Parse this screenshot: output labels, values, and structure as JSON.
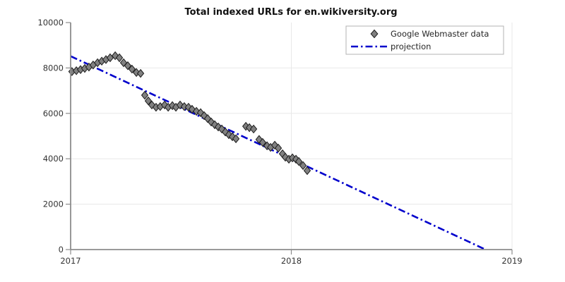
{
  "figure": {
    "background": "#ffffff"
  },
  "chart_data": {
    "type": "scatter",
    "title": "Total indexed URLs for en.wikiversity.org",
    "xlabel": "",
    "ylabel": "",
    "xlim": [
      2017,
      2019
    ],
    "ylim": [
      0,
      10000
    ],
    "x_ticks": [
      2017,
      2018,
      2019
    ],
    "y_ticks": [
      0,
      2000,
      4000,
      6000,
      8000,
      10000
    ],
    "grid": {
      "horizontal_at": [
        2000,
        4000,
        6000,
        8000
      ],
      "vertical_at": [
        2018,
        2019
      ],
      "color": "#e8e8e8"
    },
    "axis_color": "#8c8c8c",
    "legend": {
      "position": "upper right",
      "border_color": "#b3b3b3",
      "background": "#ffffff"
    },
    "series": [
      {
        "name": "Google Webmaster data",
        "type": "scatter",
        "marker": "diamond",
        "fill": "#808080",
        "edge": "#1c1c1c",
        "points": [
          [
            2017.006,
            7840
          ],
          [
            2017.026,
            7880
          ],
          [
            2017.045,
            7930
          ],
          [
            2017.064,
            7980
          ],
          [
            2017.083,
            8040
          ],
          [
            2017.102,
            8130
          ],
          [
            2017.122,
            8230
          ],
          [
            2017.141,
            8300
          ],
          [
            2017.16,
            8370
          ],
          [
            2017.179,
            8450
          ],
          [
            2017.202,
            8540
          ],
          [
            2017.221,
            8450
          ],
          [
            2017.24,
            8230
          ],
          [
            2017.259,
            8100
          ],
          [
            2017.278,
            7950
          ],
          [
            2017.298,
            7800
          ],
          [
            2017.317,
            7760
          ],
          [
            2017.336,
            6800
          ],
          [
            2017.352,
            6550
          ],
          [
            2017.368,
            6370
          ],
          [
            2017.387,
            6270
          ],
          [
            2017.406,
            6300
          ],
          [
            2017.426,
            6370
          ],
          [
            2017.442,
            6270
          ],
          [
            2017.461,
            6340
          ],
          [
            2017.477,
            6270
          ],
          [
            2017.496,
            6370
          ],
          [
            2017.515,
            6300
          ],
          [
            2017.534,
            6270
          ],
          [
            2017.55,
            6180
          ],
          [
            2017.57,
            6090
          ],
          [
            2017.589,
            6030
          ],
          [
            2017.605,
            5900
          ],
          [
            2017.621,
            5770
          ],
          [
            2017.637,
            5620
          ],
          [
            2017.653,
            5500
          ],
          [
            2017.669,
            5400
          ],
          [
            2017.685,
            5310
          ],
          [
            2017.701,
            5180
          ],
          [
            2017.717,
            5060
          ],
          [
            2017.733,
            4970
          ],
          [
            2017.749,
            4880
          ],
          [
            2017.794,
            5430
          ],
          [
            2017.81,
            5370
          ],
          [
            2017.829,
            5310
          ],
          [
            2017.854,
            4850
          ],
          [
            2017.87,
            4720
          ],
          [
            2017.89,
            4570
          ],
          [
            2017.906,
            4500
          ],
          [
            2017.925,
            4600
          ],
          [
            2017.941,
            4470
          ],
          [
            2017.96,
            4220
          ],
          [
            2017.973,
            4070
          ],
          [
            2017.989,
            3980
          ],
          [
            2018.005,
            4040
          ],
          [
            2018.021,
            3980
          ],
          [
            2018.034,
            3880
          ],
          [
            2018.053,
            3700
          ],
          [
            2018.072,
            3480
          ]
        ]
      },
      {
        "name": "projection",
        "type": "line",
        "dash": "dashdot",
        "color": "#0000cc",
        "points": [
          [
            2017.0,
            8520
          ],
          [
            2018.88,
            0
          ]
        ]
      }
    ]
  }
}
